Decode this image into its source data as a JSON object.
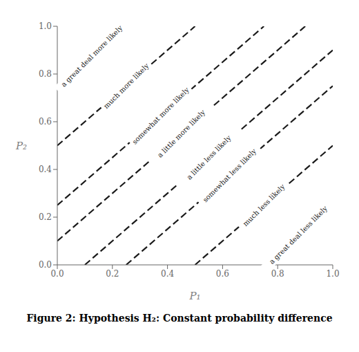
{
  "chart_data": {
    "type": "line",
    "title": "Figure 2: Hypothesis H₂: Constant probability difference",
    "xlabel": "P₁",
    "ylabel": "P₂",
    "xlim": [
      0.0,
      1.0
    ],
    "ylim": [
      0.0,
      1.0
    ],
    "xticks": [
      {
        "value": 0.0,
        "label": "0.0"
      },
      {
        "value": 0.2,
        "label": "0.2"
      },
      {
        "value": 0.4,
        "label": "0.4"
      },
      {
        "value": 0.6,
        "label": "0.6"
      },
      {
        "value": 0.8,
        "label": "0.8"
      },
      {
        "value": 1.0,
        "label": "1.0"
      }
    ],
    "yticks": [
      {
        "value": 0.0,
        "label": "0.0"
      },
      {
        "value": 0.2,
        "label": "0.2"
      },
      {
        "value": 0.4,
        "label": "0.4"
      },
      {
        "value": 0.6,
        "label": "0.6"
      },
      {
        "value": 0.8,
        "label": "0.8"
      },
      {
        "value": 1.0,
        "label": "1.0"
      }
    ],
    "series": [
      {
        "name": "a great deal more likely",
        "x": [
          0.0,
          0.25
        ],
        "values": [
          0.75,
          1.0
        ],
        "color": "#1a1a1a",
        "line_style": "dashed"
      },
      {
        "name": "much more likely",
        "x": [
          0.0,
          0.5
        ],
        "values": [
          0.5,
          1.0
        ],
        "color": "#1a1a1a",
        "line_style": "dashed"
      },
      {
        "name": "somewhat more likely",
        "x": [
          0.0,
          0.75
        ],
        "values": [
          0.25,
          1.0
        ],
        "color": "#1a1a1a",
        "line_style": "dashed"
      },
      {
        "name": "a little more likely",
        "x": [
          0.0,
          0.9
        ],
        "values": [
          0.1,
          1.0
        ],
        "color": "#1a1a1a",
        "line_style": "dashed"
      },
      {
        "name": "a little less likely",
        "x": [
          0.1,
          1.0
        ],
        "values": [
          0.0,
          0.9
        ],
        "color": "#1a1a1a",
        "line_style": "dashed"
      },
      {
        "name": "somewhat less likely",
        "x": [
          0.25,
          1.0
        ],
        "values": [
          0.0,
          0.75
        ],
        "color": "#1a1a1a",
        "line_style": "dashed"
      },
      {
        "name": "much less likely",
        "x": [
          0.5,
          1.0
        ],
        "values": [
          0.0,
          0.5
        ],
        "color": "#1a1a1a",
        "line_style": "dashed"
      },
      {
        "name": "a great deal less likely",
        "x": [
          0.75,
          1.0
        ],
        "values": [
          0.0,
          0.25
        ],
        "color": "#1a1a1a",
        "line_style": "dashed"
      }
    ]
  }
}
